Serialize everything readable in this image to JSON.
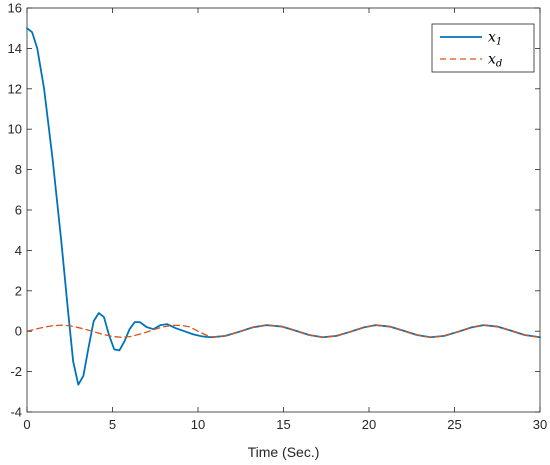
{
  "chart_data": {
    "type": "line",
    "title": "",
    "xlabel": "Time (Sec.)",
    "ylabel": "",
    "xlim": [
      0,
      30
    ],
    "ylim": [
      -4,
      16
    ],
    "xticks": [
      0,
      5,
      10,
      15,
      20,
      25,
      30
    ],
    "yticks": [
      -4,
      -2,
      0,
      2,
      4,
      6,
      8,
      10,
      12,
      14,
      16
    ],
    "grid": false,
    "legend_position": "top-right",
    "series": [
      {
        "name": "x1",
        "name_base": "x",
        "name_sub": "1",
        "color": "#0072BD",
        "dash": "solid",
        "points": [
          [
            0,
            15.0
          ],
          [
            0.3,
            14.8
          ],
          [
            0.6,
            14.0
          ],
          [
            1.0,
            12.0
          ],
          [
            1.5,
            8.5
          ],
          [
            2.0,
            4.5
          ],
          [
            2.4,
            1.0
          ],
          [
            2.7,
            -1.5
          ],
          [
            3.0,
            -2.65
          ],
          [
            3.3,
            -2.2
          ],
          [
            3.6,
            -0.8
          ],
          [
            3.9,
            0.5
          ],
          [
            4.2,
            0.9
          ],
          [
            4.5,
            0.7
          ],
          [
            4.8,
            -0.2
          ],
          [
            5.1,
            -0.9
          ],
          [
            5.4,
            -0.95
          ],
          [
            5.7,
            -0.5
          ],
          [
            6.0,
            0.1
          ],
          [
            6.3,
            0.45
          ],
          [
            6.6,
            0.45
          ],
          [
            7.0,
            0.2
          ],
          [
            7.4,
            0.1
          ],
          [
            7.8,
            0.3
          ],
          [
            8.2,
            0.35
          ],
          [
            8.7,
            0.15
          ],
          [
            9.2,
            0.0
          ],
          [
            9.7,
            -0.15
          ],
          [
            10.2,
            -0.25
          ],
          [
            10.5,
            -0.28
          ],
          [
            10.8,
            -0.3
          ],
          [
            11.6,
            -0.23
          ],
          [
            12.4,
            -0.03
          ],
          [
            13.2,
            0.19
          ],
          [
            14.0,
            0.3
          ],
          [
            14.9,
            0.23
          ],
          [
            15.7,
            0.03
          ],
          [
            16.5,
            -0.19
          ],
          [
            17.3,
            -0.3
          ],
          [
            18.1,
            -0.23
          ],
          [
            18.9,
            -0.03
          ],
          [
            19.7,
            0.19
          ],
          [
            20.4,
            0.3
          ],
          [
            21.2,
            0.23
          ],
          [
            22.0,
            0.03
          ],
          [
            22.8,
            -0.19
          ],
          [
            23.6,
            -0.3
          ],
          [
            24.4,
            -0.23
          ],
          [
            25.2,
            -0.03
          ],
          [
            26.0,
            0.19
          ],
          [
            26.7,
            0.3
          ],
          [
            27.5,
            0.23
          ],
          [
            28.3,
            0.03
          ],
          [
            29.1,
            -0.19
          ],
          [
            30.0,
            -0.3
          ]
        ]
      },
      {
        "name": "xd",
        "name_base": "x",
        "name_sub": "d",
        "color": "#D95319",
        "dash": "dashed",
        "points": [
          [
            0,
            0.0
          ],
          [
            0.5,
            0.1
          ],
          [
            1.0,
            0.2
          ],
          [
            1.5,
            0.27
          ],
          [
            2.0,
            0.3
          ],
          [
            2.5,
            0.27
          ],
          [
            3.0,
            0.18
          ],
          [
            3.5,
            0.07
          ],
          [
            4.0,
            -0.05
          ],
          [
            4.5,
            -0.17
          ],
          [
            5.0,
            -0.26
          ],
          [
            5.5,
            -0.3
          ],
          [
            6.0,
            -0.27
          ],
          [
            6.5,
            -0.17
          ],
          [
            7.0,
            -0.04
          ],
          [
            7.5,
            0.1
          ],
          [
            8.0,
            0.22
          ],
          [
            8.5,
            0.29
          ],
          [
            9.0,
            0.29
          ],
          [
            9.5,
            0.22
          ],
          [
            10.0,
            0.0
          ],
          [
            10.5,
            -0.2
          ],
          [
            10.8,
            -0.28
          ],
          [
            11.6,
            -0.23
          ],
          [
            12.4,
            -0.03
          ],
          [
            13.2,
            0.19
          ],
          [
            14.0,
            0.3
          ],
          [
            14.9,
            0.23
          ],
          [
            15.7,
            0.03
          ],
          [
            16.5,
            -0.19
          ],
          [
            17.3,
            -0.3
          ],
          [
            18.1,
            -0.23
          ],
          [
            18.9,
            -0.03
          ],
          [
            19.7,
            0.19
          ],
          [
            20.4,
            0.3
          ],
          [
            21.2,
            0.23
          ],
          [
            22.0,
            0.03
          ],
          [
            22.8,
            -0.19
          ],
          [
            23.6,
            -0.3
          ],
          [
            24.4,
            -0.23
          ],
          [
            25.2,
            -0.03
          ],
          [
            26.0,
            0.19
          ],
          [
            26.7,
            0.3
          ],
          [
            27.5,
            0.23
          ],
          [
            28.3,
            0.03
          ],
          [
            29.1,
            -0.19
          ],
          [
            30.0,
            -0.3
          ]
        ]
      }
    ]
  }
}
